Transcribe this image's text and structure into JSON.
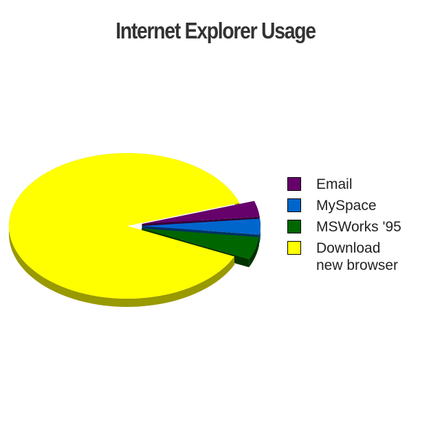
{
  "chart_data": {
    "type": "pie",
    "title": "Internet Explorer Usage",
    "style": "3d",
    "legend_position": "right",
    "slices": [
      {
        "label": "Email",
        "value": 3.5,
        "color": "#66006b",
        "side_color": "#330035"
      },
      {
        "label": "MySpace",
        "value": 3.5,
        "color": "#0066cc",
        "side_color": "#003366"
      },
      {
        "label": "MSWorks '95",
        "value": 5,
        "color": "#006600",
        "side_color": "#003300"
      },
      {
        "label": "Download new browser",
        "value": 88,
        "color": "#ffff00",
        "side_color": "#999900"
      }
    ],
    "legend": [
      {
        "label": "Email",
        "color": "#66006b"
      },
      {
        "label": "MySpace",
        "color": "#0066cc"
      },
      {
        "label": "MSWorks '95",
        "color": "#006600"
      },
      {
        "label": "Download\nnew browser",
        "color": "#ffff00"
      }
    ]
  }
}
